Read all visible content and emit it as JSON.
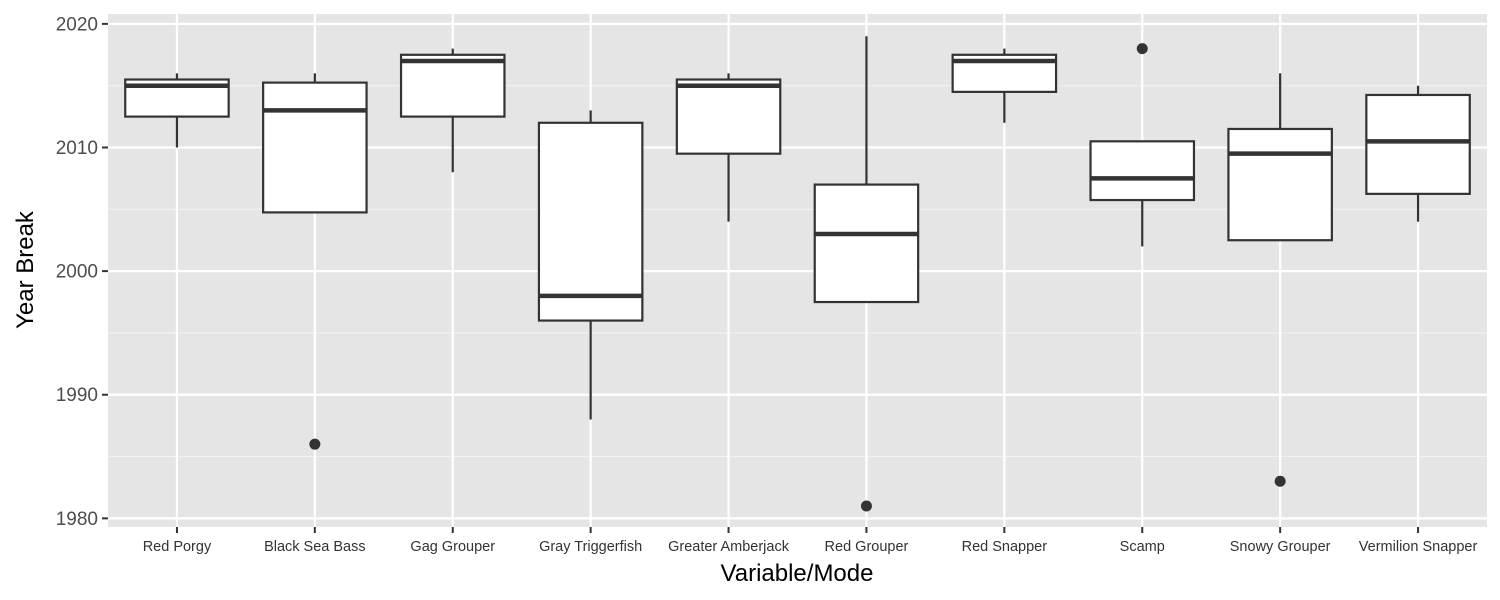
{
  "chart_data": {
    "type": "box",
    "xlabel": "Variable/Mode",
    "ylabel": "Year Break",
    "ylim": [
      1979.3,
      2020.8
    ],
    "yticks": [
      1980,
      1990,
      2000,
      2010,
      2020
    ],
    "grid": true,
    "categories": [
      "Red Porgy",
      "Black Sea Bass",
      "Gag Grouper",
      "Gray Triggerfish",
      "Greater Amberjack",
      "Red Grouper",
      "Red Snapper",
      "Scamp",
      "Snowy Grouper",
      "Vermilion Snapper"
    ],
    "boxes": [
      {
        "category": "Red Porgy",
        "whisker_low": 2010,
        "q1": 2012.5,
        "median": 2015,
        "q3": 2015.5,
        "whisker_high": 2016,
        "outliers": []
      },
      {
        "category": "Black Sea Bass",
        "whisker_low": 2004.75,
        "q1": 2004.75,
        "median": 2013,
        "q3": 2015.25,
        "whisker_high": 2016,
        "outliers": [
          1986
        ]
      },
      {
        "category": "Gag Grouper",
        "whisker_low": 2008,
        "q1": 2012.5,
        "median": 2017,
        "q3": 2017.5,
        "whisker_high": 2018,
        "outliers": []
      },
      {
        "category": "Gray Triggerfish",
        "whisker_low": 1988,
        "q1": 1996,
        "median": 1998,
        "q3": 2012,
        "whisker_high": 2013,
        "outliers": []
      },
      {
        "category": "Greater Amberjack",
        "whisker_low": 2004,
        "q1": 2009.5,
        "median": 2015,
        "q3": 2015.5,
        "whisker_high": 2016,
        "outliers": []
      },
      {
        "category": "Red Grouper",
        "whisker_low": 1997.5,
        "q1": 1997.5,
        "median": 2003,
        "q3": 2007,
        "whisker_high": 2019,
        "outliers": [
          1981
        ]
      },
      {
        "category": "Red Snapper",
        "whisker_low": 2012,
        "q1": 2014.5,
        "median": 2017,
        "q3": 2017.5,
        "whisker_high": 2018,
        "outliers": []
      },
      {
        "category": "Scamp",
        "whisker_low": 2002,
        "q1": 2005.75,
        "median": 2007.5,
        "q3": 2010.5,
        "whisker_high": 2010.5,
        "outliers": [
          2018
        ]
      },
      {
        "category": "Snowy Grouper",
        "whisker_low": 2002.5,
        "q1": 2002.5,
        "median": 2009.5,
        "q3": 2011.5,
        "whisker_high": 2016,
        "outliers": [
          1983
        ]
      },
      {
        "category": "Vermilion Snapper",
        "whisker_low": 2004,
        "q1": 2006.25,
        "median": 2010.5,
        "q3": 2014.25,
        "whisker_high": 2015,
        "outliers": []
      }
    ]
  }
}
